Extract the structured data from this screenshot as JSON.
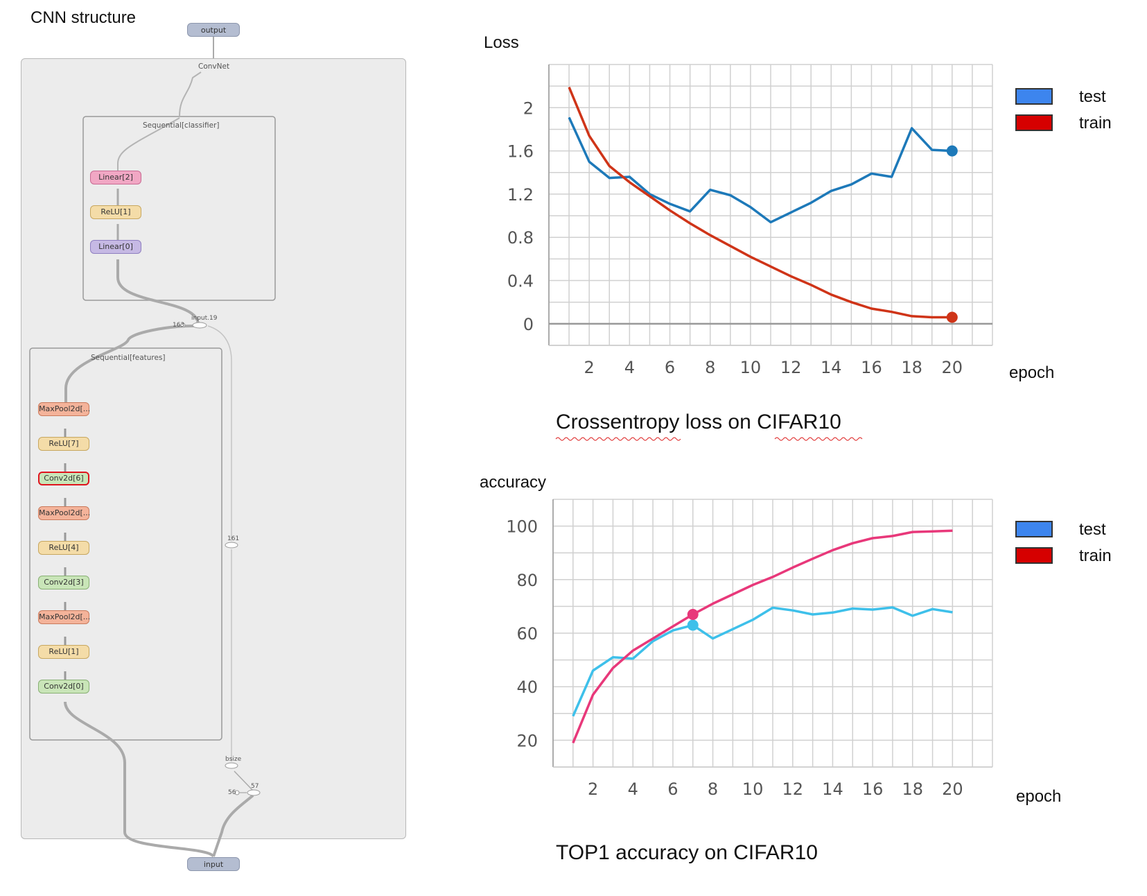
{
  "cnn": {
    "title": "CNN structure",
    "output_label": "output",
    "input_label": "input",
    "convnet_label": "ConvNet",
    "classifier_label": "Sequential[classifier]",
    "features_label": "Sequential[features]",
    "input19_label": "input.19",
    "n163": "163",
    "n161": "161",
    "bsize": "bsize",
    "n57": "57",
    "n56": "56",
    "colors": {
      "linear2": "#f1a7c4",
      "relu": "#f4dca8",
      "linear0": "#c6b9e4",
      "maxpool": "#f4b39a",
      "conv": "#c9e5b8",
      "highlight": "#e0141e"
    },
    "classifier_nodes": [
      {
        "label": "Linear[2]",
        "kind": "linear2"
      },
      {
        "label": "ReLU[1]",
        "kind": "relu"
      },
      {
        "label": "Linear[0]",
        "kind": "linear0"
      }
    ],
    "feature_nodes": [
      {
        "label": "MaxPool2d[...",
        "kind": "maxpool"
      },
      {
        "label": "ReLU[7]",
        "kind": "relu"
      },
      {
        "label": "Conv2d[6]",
        "kind": "conv",
        "highlight": true
      },
      {
        "label": "MaxPool2d[...",
        "kind": "maxpool"
      },
      {
        "label": "ReLU[4]",
        "kind": "relu"
      },
      {
        "label": "Conv2d[3]",
        "kind": "conv"
      },
      {
        "label": "MaxPool2d[...",
        "kind": "maxpool"
      },
      {
        "label": "ReLU[1]",
        "kind": "relu"
      },
      {
        "label": "Conv2d[0]",
        "kind": "conv"
      }
    ]
  },
  "loss_panel": {
    "ylabel": "Loss",
    "xlabel": "epoch",
    "caption": "Crossentropy loss on CIFAR10",
    "legend": [
      {
        "label": "test",
        "color": "#3d85ee"
      },
      {
        "label": "train",
        "color": "#d60000"
      }
    ]
  },
  "acc_panel": {
    "ylabel": "accuracy",
    "xlabel": "epoch",
    "caption": "TOP1 accuracy on CIFAR10",
    "legend": [
      {
        "label": "test",
        "color": "#3d85ee"
      },
      {
        "label": "train",
        "color": "#d60000"
      }
    ]
  },
  "chart_data": [
    {
      "type": "line",
      "yticks": [
        "0",
        "0.4",
        "0.8",
        "1.2",
        "1.6",
        "2"
      ],
      "xticks": [
        "2",
        "4",
        "6",
        "8",
        "10",
        "12",
        "14",
        "16",
        "18",
        "20"
      ],
      "xlim": [
        0,
        22
      ],
      "ylim": [
        -0.2,
        2.4
      ],
      "grid": true,
      "series": [
        {
          "name": "test",
          "color": "#1d79b9",
          "x": [
            1,
            2,
            3,
            4,
            5,
            6,
            7,
            8,
            9,
            10,
            11,
            12,
            13,
            14,
            15,
            16,
            17,
            18,
            19,
            20
          ],
          "values": [
            1.91,
            1.5,
            1.35,
            1.36,
            1.2,
            1.11,
            1.04,
            1.24,
            1.19,
            1.08,
            0.94,
            1.03,
            1.12,
            1.23,
            1.29,
            1.39,
            1.36,
            1.81,
            1.61,
            1.6
          ],
          "end_marker": true
        },
        {
          "name": "train",
          "color": "#cf3418",
          "x": [
            1,
            2,
            3,
            4,
            5,
            6,
            7,
            8,
            9,
            10,
            11,
            12,
            13,
            14,
            15,
            16,
            17,
            18,
            19,
            20
          ],
          "values": [
            2.19,
            1.74,
            1.46,
            1.31,
            1.18,
            1.05,
            0.93,
            0.82,
            0.72,
            0.62,
            0.53,
            0.44,
            0.36,
            0.27,
            0.2,
            0.14,
            0.11,
            0.07,
            0.06,
            0.06
          ],
          "end_marker": true
        }
      ]
    },
    {
      "type": "line",
      "yticks": [
        "20",
        "40",
        "60",
        "80",
        "100"
      ],
      "xticks": [
        "2",
        "4",
        "6",
        "8",
        "10",
        "12",
        "14",
        "16",
        "18",
        "20"
      ],
      "xlim": [
        0,
        22
      ],
      "ylim": [
        10,
        110
      ],
      "grid": true,
      "series": [
        {
          "name": "test",
          "color": "#3ec0ea",
          "x": [
            1,
            2,
            3,
            4,
            5,
            6,
            7,
            8,
            9,
            10,
            11,
            12,
            13,
            14,
            15,
            16,
            17,
            18,
            19,
            20
          ],
          "values": [
            29,
            46,
            51,
            50.5,
            57,
            61,
            63,
            58,
            61.5,
            65,
            69.5,
            68.5,
            67,
            67.7,
            69.2,
            68.8,
            69.6,
            66.5,
            69,
            67.8
          ],
          "marker_at_x": 7
        },
        {
          "name": "train",
          "color": "#e8387a",
          "x": [
            1,
            2,
            3,
            4,
            5,
            6,
            7,
            8,
            9,
            10,
            11,
            12,
            13,
            14,
            15,
            16,
            17,
            18,
            19,
            20
          ],
          "values": [
            19,
            37,
            47,
            53.5,
            58,
            62.5,
            67,
            71,
            74.5,
            78,
            81,
            84.5,
            87.8,
            91,
            93.6,
            95.5,
            96.3,
            97.8,
            98,
            98.3
          ],
          "marker_at_x": 7
        }
      ]
    }
  ]
}
